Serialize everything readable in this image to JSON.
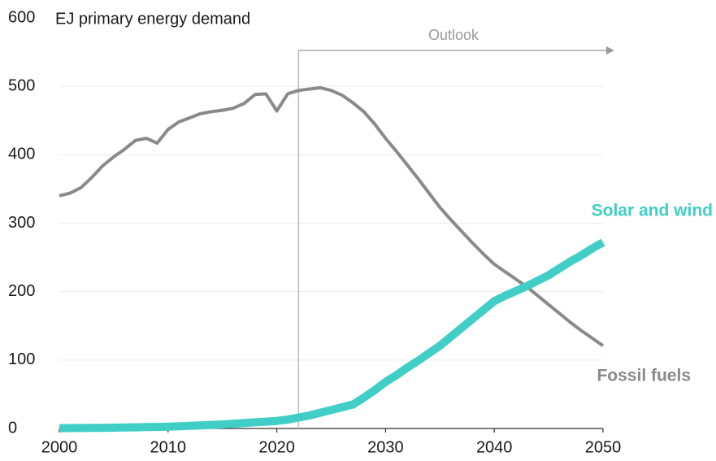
{
  "chart_data": {
    "type": "line",
    "y_label": "EJ primary energy demand",
    "annotation": "Outlook",
    "outlook_start": 2022,
    "x": [
      2000,
      2001,
      2002,
      2003,
      2004,
      2005,
      2006,
      2007,
      2008,
      2009,
      2010,
      2011,
      2012,
      2013,
      2014,
      2015,
      2016,
      2017,
      2018,
      2019,
      2020,
      2021,
      2022,
      2023,
      2024,
      2025,
      2026,
      2027,
      2028,
      2029,
      2030,
      2031,
      2032,
      2033,
      2034,
      2035,
      2036,
      2037,
      2038,
      2039,
      2040,
      2041,
      2042,
      2043,
      2044,
      2045,
      2046,
      2047,
      2048,
      2049,
      2050
    ],
    "series": [
      {
        "name": "Fossil fuels",
        "color": "#8a8a8a",
        "values": [
          340,
          344,
          352,
          367,
          384,
          397,
          408,
          421,
          424,
          417,
          437,
          448,
          454,
          460,
          463,
          465,
          468,
          475,
          488,
          489,
          464,
          489,
          494,
          496,
          498,
          494,
          487,
          476,
          463,
          445,
          424,
          405,
          385,
          365,
          344,
          323,
          305,
          288,
          271,
          255,
          240,
          229,
          218,
          207,
          194,
          181,
          168,
          155,
          143,
          132,
          121
        ]
      },
      {
        "name": "Solar and wind",
        "color": "#40cec7",
        "values": [
          0.5,
          0.6,
          0.7,
          0.8,
          1,
          1.2,
          1.4,
          1.7,
          2,
          2.3,
          2.7,
          3.3,
          3.9,
          4.5,
          5.2,
          6,
          7,
          8,
          9,
          10,
          11,
          13,
          16,
          19,
          23,
          27,
          31,
          35,
          45,
          56,
          68,
          78,
          89,
          99,
          110,
          121,
          134,
          147,
          160,
          173,
          186,
          194,
          201,
          208,
          216,
          224,
          234,
          244,
          253,
          263,
          272
        ]
      }
    ],
    "xlim": [
      2000,
      2050
    ],
    "xticks": [
      2000,
      2010,
      2020,
      2030,
      2040,
      2050
    ],
    "ylim": [
      0,
      600
    ],
    "yticks": [
      0,
      100,
      200,
      300,
      400,
      500,
      600
    ],
    "grid": true
  }
}
